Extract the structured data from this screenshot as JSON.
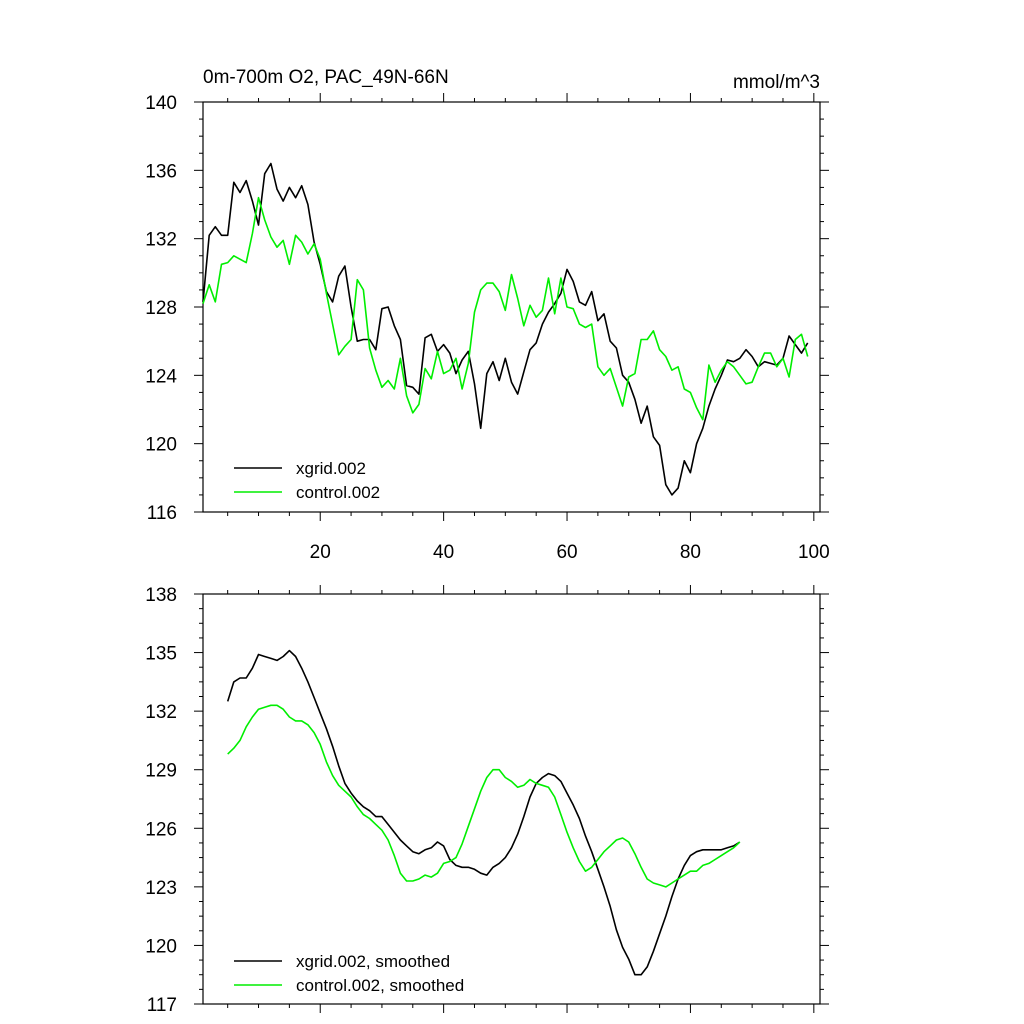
{
  "colors": {
    "xgrid": "#000000",
    "control": "#00ee00",
    "frame": "#000000",
    "background": "#ffffff"
  },
  "header": {
    "title": "0m-700m O2, PAC_49N-66N",
    "units": "mmol/m^3"
  },
  "chart_data": [
    {
      "type": "line",
      "panel": "top",
      "title": "0m-700m O2, PAC_49N-66N",
      "units": "mmol/m^3",
      "xlim": [
        1,
        101
      ],
      "ylim": [
        116,
        140
      ],
      "x_ticks": [
        20,
        40,
        60,
        80,
        100
      ],
      "x_tick_labels": [
        "20",
        "40",
        "60",
        "80",
        "100"
      ],
      "y_ticks": [
        116,
        120,
        124,
        128,
        132,
        136,
        140
      ],
      "y_tick_labels": [
        "116",
        "120",
        "124",
        "128",
        "132",
        "136",
        "140"
      ],
      "legend_position": "bottom-left",
      "grid": false,
      "series": [
        {
          "name": "xgrid.002",
          "key": "xgrid",
          "x_start": 1,
          "values": [
            128.3,
            132.2,
            132.7,
            132.2,
            132.2,
            135.3,
            134.7,
            135.4,
            134.2,
            132.8,
            135.8,
            136.4,
            134.9,
            134.2,
            135.0,
            134.4,
            135.1,
            134.0,
            131.8,
            130.5,
            128.9,
            128.3,
            129.8,
            130.4,
            128.0,
            126.0,
            126.1,
            126.1,
            125.5,
            127.9,
            128.0,
            126.9,
            126.1,
            123.4,
            123.3,
            122.9,
            126.2,
            126.4,
            125.4,
            125.8,
            125.3,
            124.1,
            124.9,
            125.4,
            123.5,
            120.9,
            124.1,
            124.8,
            123.7,
            125.0,
            123.6,
            122.9,
            124.2,
            125.5,
            125.9,
            127.0,
            127.7,
            128.2,
            128.8,
            130.2,
            129.5,
            128.3,
            128.1,
            128.9,
            127.2,
            127.6,
            126.0,
            125.6,
            124.0,
            123.6,
            122.6,
            121.2,
            122.2,
            120.4,
            119.9,
            117.6,
            117.0,
            117.4,
            119.0,
            118.3,
            120.0,
            120.9,
            122.2,
            123.2,
            124.0,
            124.9,
            124.8,
            125.0,
            125.5,
            125.1,
            124.5,
            124.8,
            124.7,
            124.6,
            125.0,
            126.3,
            125.8,
            125.3,
            125.9
          ]
        },
        {
          "name": "control.002",
          "key": "control",
          "x_start": 1,
          "values": [
            128.2,
            129.3,
            128.3,
            130.5,
            130.6,
            131.0,
            130.8,
            130.6,
            132.3,
            134.4,
            133.1,
            132.1,
            131.5,
            131.9,
            130.5,
            132.2,
            131.8,
            131.1,
            131.7,
            130.8,
            128.8,
            127.0,
            125.2,
            125.7,
            126.1,
            129.6,
            129.0,
            125.6,
            124.3,
            123.3,
            123.7,
            123.2,
            125.0,
            122.8,
            121.8,
            122.3,
            124.4,
            123.8,
            125.4,
            124.1,
            124.3,
            125.0,
            123.2,
            124.7,
            127.7,
            129.0,
            129.4,
            129.4,
            128.9,
            127.8,
            129.9,
            128.5,
            126.9,
            128.1,
            127.4,
            127.8,
            129.7,
            127.6,
            129.7,
            128.0,
            127.9,
            127.0,
            126.8,
            127.0,
            124.5,
            124.0,
            124.4,
            123.3,
            122.2,
            123.9,
            124.1,
            126.1,
            126.1,
            126.6,
            125.5,
            125.1,
            124.3,
            124.5,
            123.2,
            123.0,
            122.1,
            121.4,
            124.6,
            123.6,
            124.3,
            124.8,
            124.5,
            124.0,
            123.5,
            123.6,
            124.5,
            125.3,
            125.3,
            124.5,
            125.0,
            123.9,
            126.1,
            126.4,
            125.1
          ]
        }
      ]
    },
    {
      "type": "line",
      "panel": "bottom",
      "xlim": [
        1,
        101
      ],
      "ylim": [
        117,
        138
      ],
      "x_ticks": [
        20,
        40,
        60,
        80,
        100
      ],
      "y_ticks": [
        117,
        120,
        123,
        126,
        129,
        132,
        135,
        138
      ],
      "y_tick_labels": [
        "117",
        "120",
        "123",
        "126",
        "129",
        "132",
        "135",
        "138"
      ],
      "legend_position": "bottom-left",
      "grid": false,
      "series": [
        {
          "name": "xgrid.002, smoothed",
          "key": "xgrid",
          "x_start": 5,
          "values": [
            132.5,
            133.5,
            133.7,
            133.7,
            134.2,
            134.9,
            134.8,
            134.7,
            134.6,
            134.8,
            135.1,
            134.8,
            134.2,
            133.5,
            132.7,
            131.9,
            131.1,
            130.2,
            129.2,
            128.3,
            127.8,
            127.4,
            127.1,
            126.9,
            126.6,
            126.6,
            126.2,
            125.8,
            125.4,
            125.1,
            124.8,
            124.7,
            124.9,
            125.0,
            125.3,
            125.1,
            124.4,
            124.1,
            124.0,
            124.0,
            123.9,
            123.7,
            123.6,
            124.0,
            124.2,
            124.5,
            125.0,
            125.7,
            126.6,
            127.6,
            128.3,
            128.6,
            128.8,
            128.7,
            128.4,
            127.8,
            127.2,
            126.5,
            125.6,
            124.8,
            123.9,
            123.0,
            122.0,
            120.8,
            119.9,
            119.3,
            118.5,
            118.5,
            118.9,
            119.7,
            120.6,
            121.5,
            122.5,
            123.4,
            124.1,
            124.6,
            124.8,
            124.9,
            124.9,
            124.9,
            124.9,
            125.0,
            125.1,
            125.3
          ]
        },
        {
          "name": "control.002, smoothed",
          "key": "control",
          "x_start": 5,
          "values": [
            129.8,
            130.1,
            130.5,
            131.2,
            131.7,
            132.1,
            132.2,
            132.3,
            132.3,
            132.1,
            131.7,
            131.5,
            131.5,
            131.3,
            130.9,
            130.3,
            129.4,
            128.7,
            128.2,
            127.9,
            127.6,
            127.1,
            126.7,
            126.5,
            126.2,
            125.9,
            125.4,
            124.6,
            123.7,
            123.3,
            123.3,
            123.4,
            123.6,
            123.5,
            123.7,
            124.2,
            124.3,
            124.5,
            125.2,
            126.1,
            127.0,
            127.9,
            128.6,
            129.0,
            129.0,
            128.6,
            128.4,
            128.1,
            128.2,
            128.5,
            128.3,
            128.2,
            128.1,
            127.6,
            126.7,
            125.8,
            125.0,
            124.3,
            123.8,
            124.0,
            124.4,
            124.8,
            125.1,
            125.4,
            125.5,
            125.3,
            124.7,
            124.0,
            123.4,
            123.2,
            123.1,
            123.0,
            123.2,
            123.4,
            123.6,
            123.8,
            123.8,
            124.1,
            124.2,
            124.4,
            124.6,
            124.8,
            125.0,
            125.3
          ]
        }
      ]
    }
  ]
}
